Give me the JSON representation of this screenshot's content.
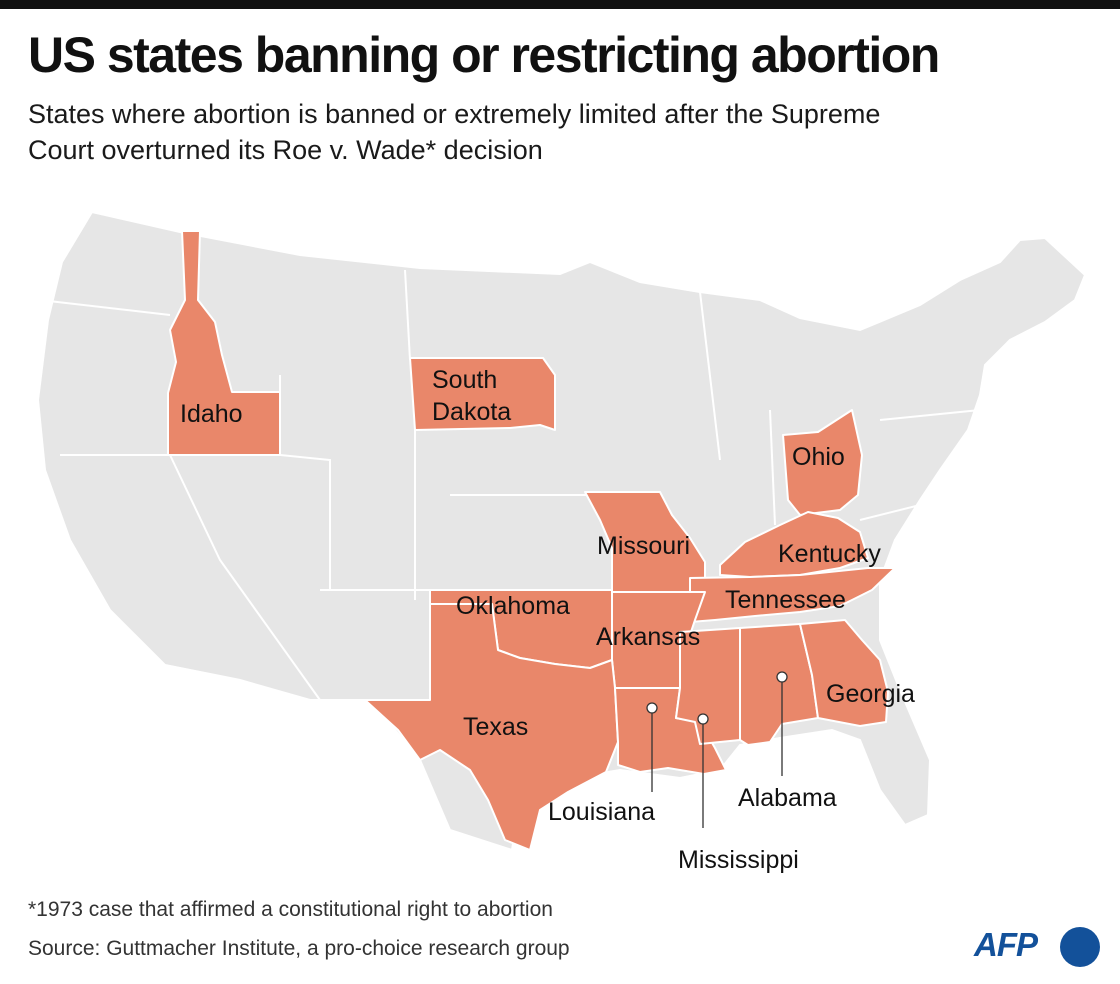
{
  "title": "US states banning or restricting abortion",
  "subtitle": "States where abortion is banned or extremely limited after the Supreme Court overturned its Roe v. Wade* decision",
  "colors": {
    "highlight": "#e9876a",
    "base": "#e6e6e6",
    "border": "#ffffff",
    "brand": "#13519a"
  },
  "states": {
    "idaho": "Idaho",
    "south_dakota_1": "South",
    "south_dakota_2": "Dakota",
    "ohio": "Ohio",
    "missouri": "Missouri",
    "kentucky": "Kentucky",
    "tennessee": "Tennessee",
    "oklahoma": "Oklahoma",
    "arkansas": "Arkansas",
    "texas": "Texas",
    "georgia": "Georgia",
    "louisiana": "Louisiana",
    "alabama": "Alabama",
    "mississippi": "Mississippi"
  },
  "footnote": "*1973 case that affirmed a constitutional right to abortion",
  "source": "Source: Guttmacher Institute, a pro-choice research group",
  "logo": "AFP"
}
